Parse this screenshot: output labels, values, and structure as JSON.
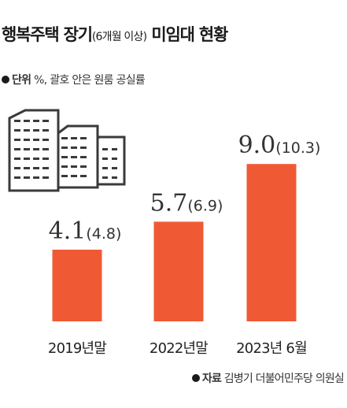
{
  "title": {
    "main": "행복주택 장기",
    "paren": "(6개월 이상)",
    "rest": "미임대 현황"
  },
  "unit_note": {
    "label": "단위",
    "text": "%, 괄호 안은 원룸 공실률"
  },
  "source_note": {
    "label": "자료",
    "text": "김병기 더불어민주당 의원실"
  },
  "icons": {
    "buildings": "apartment-buildings-icon"
  },
  "colors": {
    "bar": "#ef5a35",
    "building_stroke": "#3a3a3a",
    "text": "#333333"
  },
  "chart_data": {
    "type": "bar",
    "categories": [
      "2019년말",
      "2022년말",
      "2023년 6월"
    ],
    "values": [
      4.1,
      5.7,
      9.0
    ],
    "secondary_values": [
      4.8,
      6.9,
      10.3
    ],
    "value_labels": [
      "4.1",
      "5.7",
      "9.0"
    ],
    "secondary_labels": [
      "(4.8)",
      "(6.9)",
      "(10.3)"
    ],
    "title": "행복주택 장기(6개월 이상) 미임대 현황",
    "xlabel": "",
    "ylabel": "",
    "ylim": [
      0,
      10
    ],
    "grid": false
  }
}
